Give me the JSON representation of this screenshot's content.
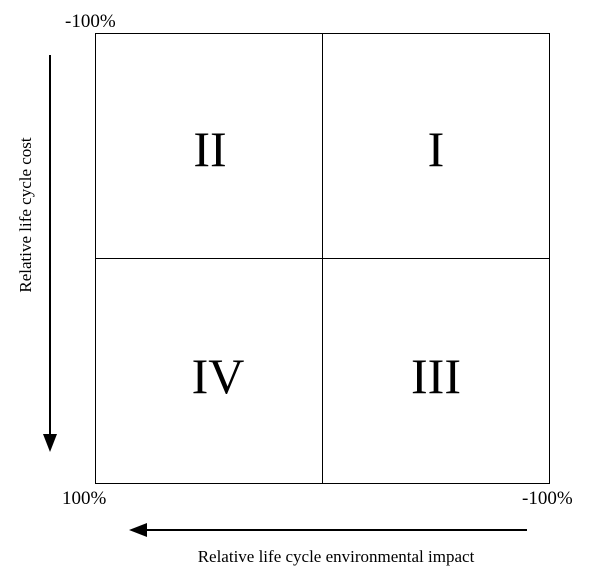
{
  "corner_labels": {
    "top_left": "-100%",
    "bottom_left": "100%",
    "bottom_right": "-100%"
  },
  "quadrants": [
    "II",
    "I",
    "IV",
    "III"
  ],
  "axes": {
    "y_label": "Relative life cycle cost",
    "x_label": "Relative life cycle environmental impact"
  }
}
